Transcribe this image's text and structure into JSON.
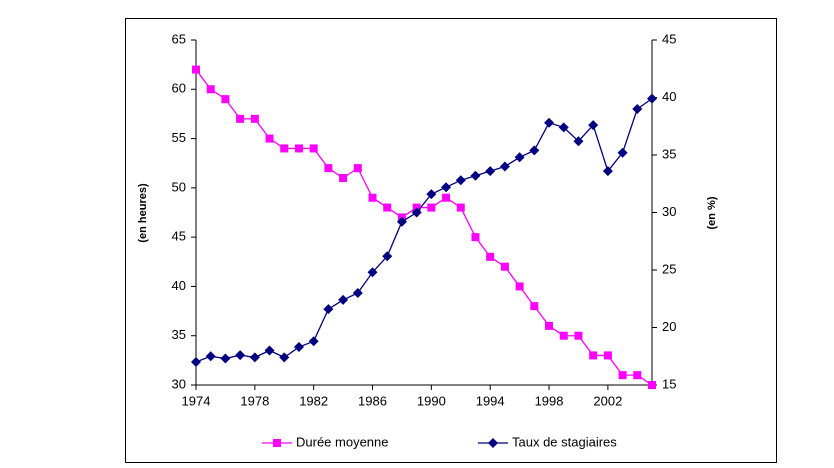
{
  "chart_data": {
    "type": "line",
    "y_label": "(en heures)",
    "y2_label": "(en %)",
    "x": [
      1974,
      1975,
      1976,
      1977,
      1978,
      1979,
      1980,
      1981,
      1982,
      1983,
      1984,
      1985,
      1986,
      1987,
      1988,
      1989,
      1990,
      1991,
      1992,
      1993,
      1994,
      1995,
      1996,
      1997,
      1998,
      1999,
      2000,
      2001,
      2002,
      2003,
      2004,
      2005
    ],
    "xlim": [
      1974,
      2005
    ],
    "xticks": [
      1974,
      1978,
      1982,
      1986,
      1990,
      1994,
      1998,
      2002
    ],
    "ylim": [
      30,
      65
    ],
    "yticks": [
      30,
      35,
      40,
      45,
      50,
      55,
      60,
      65
    ],
    "y2lim": [
      15,
      45
    ],
    "y2ticks": [
      15,
      20,
      25,
      30,
      35,
      40,
      45
    ],
    "series": [
      {
        "name": "Durée moyenne",
        "color": "#ff00ff",
        "marker": "square",
        "values": [
          62,
          60,
          59,
          57,
          57,
          55,
          54,
          54,
          54,
          52,
          51,
          52,
          49,
          48,
          47,
          48,
          48,
          49,
          48,
          45,
          43,
          42,
          40,
          38,
          36,
          35,
          35,
          33,
          33,
          31,
          31,
          30
        ]
      },
      {
        "name": "Taux de stagiaires",
        "color": "#000080",
        "marker": "diamond",
        "axis": "y2",
        "values": [
          17,
          17.5,
          17.3,
          17.6,
          17.4,
          18,
          17.4,
          18.3,
          18.8,
          21.6,
          22.4,
          23,
          24.8,
          26.2,
          29.2,
          30,
          31.6,
          32.2,
          32.8,
          33.2,
          33.6,
          34,
          34.8,
          35.4,
          37.8,
          37.4,
          36.2,
          37.6,
          33.6,
          35.2,
          39,
          39.9
        ]
      }
    ]
  }
}
